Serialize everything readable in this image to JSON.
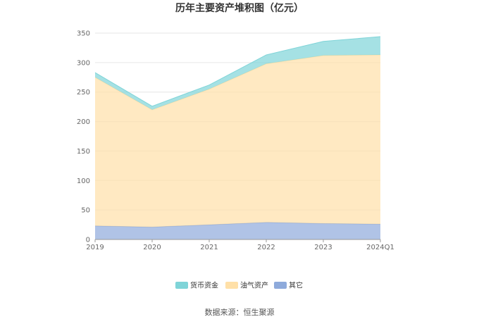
{
  "chart_data": {
    "type": "area",
    "stacked": true,
    "title": "历年主要资产堆积图（亿元）",
    "categories": [
      "2019",
      "2020",
      "2021",
      "2022",
      "2023",
      "2024Q1"
    ],
    "ylim": [
      0,
      350
    ],
    "yticks": [
      0,
      50,
      100,
      150,
      200,
      250,
      300,
      350
    ],
    "grid": true,
    "legend_position": "bottom",
    "series": [
      {
        "name": "其它",
        "color": "#8eaadb",
        "values": [
          23,
          21,
          25,
          29,
          27,
          26
        ]
      },
      {
        "name": "油气资产",
        "color": "#ffe0a8",
        "values": [
          252,
          199,
          230,
          269,
          285,
          287
        ]
      },
      {
        "name": "货币资金",
        "color": "#7fd4d8",
        "values": [
          8,
          6,
          7,
          15,
          24,
          31
        ]
      }
    ],
    "legend_order": [
      "货币资金",
      "油气资产",
      "其它"
    ]
  },
  "source_text": "数据来源：恒生聚源"
}
